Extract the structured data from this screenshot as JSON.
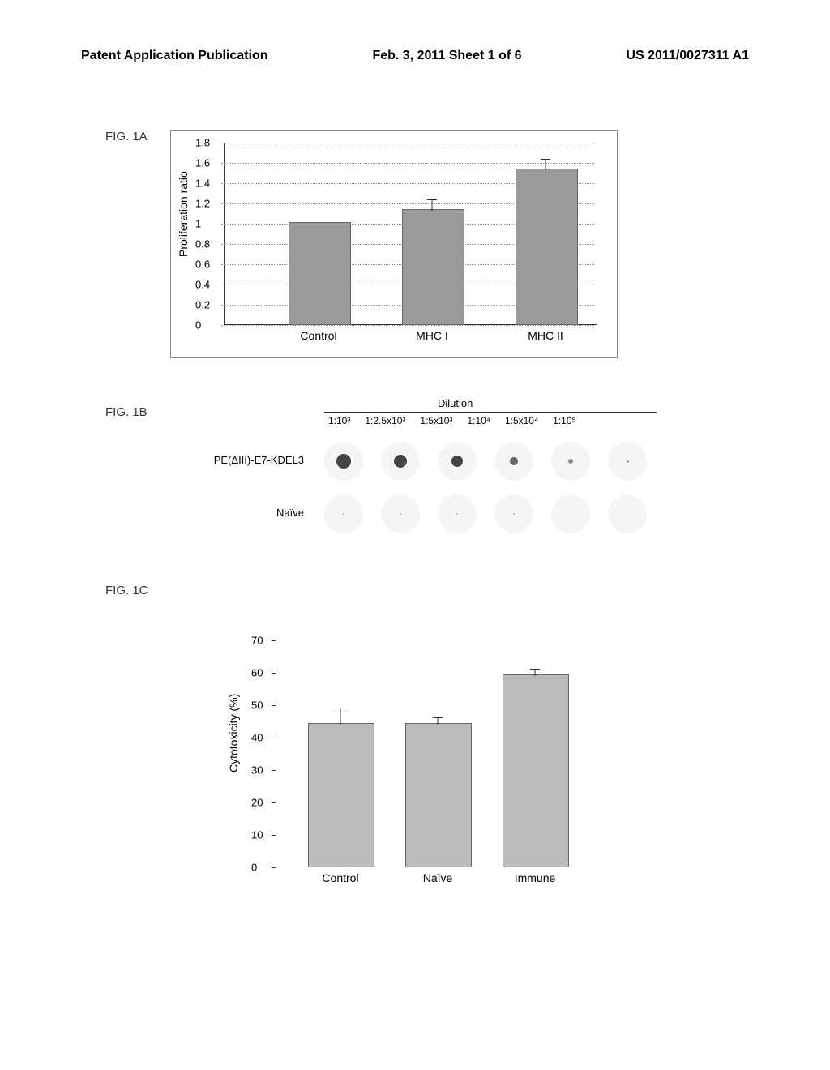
{
  "header": {
    "left": "Patent Application Publication",
    "center": "Feb. 3, 2011  Sheet 1 of 6",
    "right": "US 2011/0027311 A1"
  },
  "fig1a": {
    "label": "FIG. 1A",
    "type": "bar",
    "ylabel": "Proliferation ratio",
    "ylim": [
      0,
      1.8
    ],
    "ytick_step": 0.2,
    "categories": [
      "Control",
      "MHC I",
      "MHC II"
    ],
    "values": [
      1.0,
      1.13,
      1.53
    ],
    "errors": [
      0,
      0.1,
      0.1
    ],
    "bar_color": "#999999",
    "grid_color": "#999999",
    "label_fontsize": 14
  },
  "fig1b": {
    "label": "FIG. 1B",
    "dilution_header": "Dilution",
    "dilutions": [
      "1:10³",
      "1:2.5x10³",
      "1:5x10³",
      "1:10⁴",
      "1:5x10⁴",
      "1:10⁵"
    ],
    "rows": [
      {
        "label": "PE(ΔIII)-E7-KDEL3",
        "intensities": [
          18,
          16,
          14,
          10,
          6,
          3
        ]
      },
      {
        "label": "Naïve",
        "intensities": [
          2,
          2,
          1,
          1,
          0,
          0
        ]
      }
    ]
  },
  "fig1c": {
    "label": "FIG. 1C",
    "type": "bar",
    "ylabel": "Cytotoxicity (%)",
    "ylim": [
      0,
      70
    ],
    "ytick_step": 10,
    "categories": [
      "Control",
      "Naïve",
      "Immune"
    ],
    "values": [
      44,
      44,
      59
    ],
    "errors": [
      5,
      2,
      2
    ],
    "bar_color": "#bbbbbb",
    "label_fontsize": 14
  }
}
